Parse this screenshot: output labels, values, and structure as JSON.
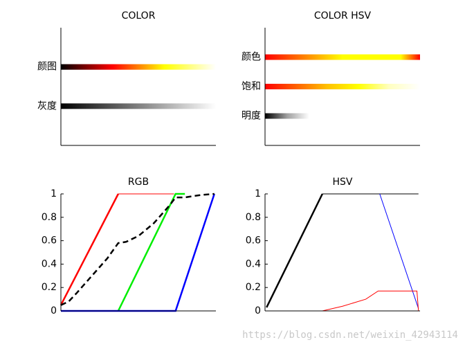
{
  "chart_data": [
    {
      "type": "gradient",
      "title": "COLOR",
      "categories": [
        "颜图",
        "灰度"
      ],
      "ylim": [
        0,
        3
      ],
      "colors": [
        [
          "#000000",
          "#800000",
          "#ff0000",
          "#ff8000",
          "#ffff00",
          "#ffff80",
          "#ffffff"
        ],
        [
          "#000000",
          "#404040",
          "#808080",
          "#c0c0c0",
          "#ffffff"
        ]
      ]
    },
    {
      "type": "gradient",
      "title": "COLOR HSV",
      "categories": [
        "颜色",
        "饱和",
        "明度"
      ],
      "ylim": [
        0,
        4
      ],
      "colors": [
        [
          "#ff0000",
          "#ff4000",
          "#ff8000",
          "#ffc000",
          "#ffff00",
          "#ffff00",
          "#ffff00",
          "#ffff00",
          "#ff0000"
        ],
        [
          "#ff0000",
          "#ff6000",
          "#ffc000",
          "#ffff00",
          "#ffffc0",
          "#ffffff"
        ],
        [
          "#000000",
          "#a0a0a0",
          "#ffffff",
          "#ffffff",
          "#ffffff",
          "#ffffff",
          "#ffffff",
          "#ffffff"
        ]
      ]
    },
    {
      "type": "line",
      "title": "RGB",
      "xlim": [
        0,
        1
      ],
      "ylim": [
        0,
        1
      ],
      "yticks": [
        0,
        0.2,
        0.4,
        0.6,
        0.8,
        1
      ],
      "series": [
        {
          "color": "#ff0000",
          "width": 2.5,
          "x": [
            0,
            0.37
          ],
          "values": [
            0.05,
            1
          ]
        },
        {
          "color": "#ff0000",
          "width": 1,
          "x": [
            0.37,
            0.73
          ],
          "values": [
            1,
            1
          ]
        },
        {
          "color": "#00ee00",
          "width": 2.5,
          "x": [
            0.37,
            0.74,
            0.8
          ],
          "values": [
            0,
            1,
            1
          ]
        },
        {
          "color": "#0000ff",
          "width": 2.5,
          "x": [
            0,
            0.74,
            0.99
          ],
          "values": [
            0,
            0,
            1
          ]
        },
        {
          "color": "#000000",
          "width": 2.5,
          "dash": true,
          "x": [
            0,
            0.05,
            0.1,
            0.2,
            0.3,
            0.37,
            0.42,
            0.5,
            0.6,
            0.7,
            0.74,
            0.8,
            0.9,
            0.99
          ],
          "values": [
            0.05,
            0.08,
            0.15,
            0.3,
            0.45,
            0.58,
            0.59,
            0.64,
            0.75,
            0.9,
            0.97,
            0.97,
            0.99,
            1
          ]
        }
      ]
    },
    {
      "type": "line",
      "title": "HSV",
      "xlim": [
        0,
        1
      ],
      "ylim": [
        0,
        1
      ],
      "yticks": [
        0,
        0.2,
        0.4,
        0.6,
        0.8,
        1
      ],
      "series": [
        {
          "color": "#000000",
          "width": 2.5,
          "x": [
            0.01,
            0.37
          ],
          "values": [
            0.03,
            1
          ]
        },
        {
          "color": "#000000",
          "width": 1,
          "x": [
            0.37,
            0.99
          ],
          "values": [
            1,
            1
          ]
        },
        {
          "color": "#0000ff",
          "width": 1,
          "x": [
            0.74,
            0.99
          ],
          "values": [
            1,
            0.02
          ]
        },
        {
          "color": "#ff0000",
          "width": 1,
          "x": [
            0,
            0.37,
            0.5,
            0.65,
            0.73,
            0.98,
            0.99
          ],
          "values": [
            0,
            0,
            0.04,
            0.1,
            0.17,
            0.17,
            0
          ]
        }
      ]
    }
  ],
  "watermark": "https://blog.csdn.net/weixin_42943114"
}
